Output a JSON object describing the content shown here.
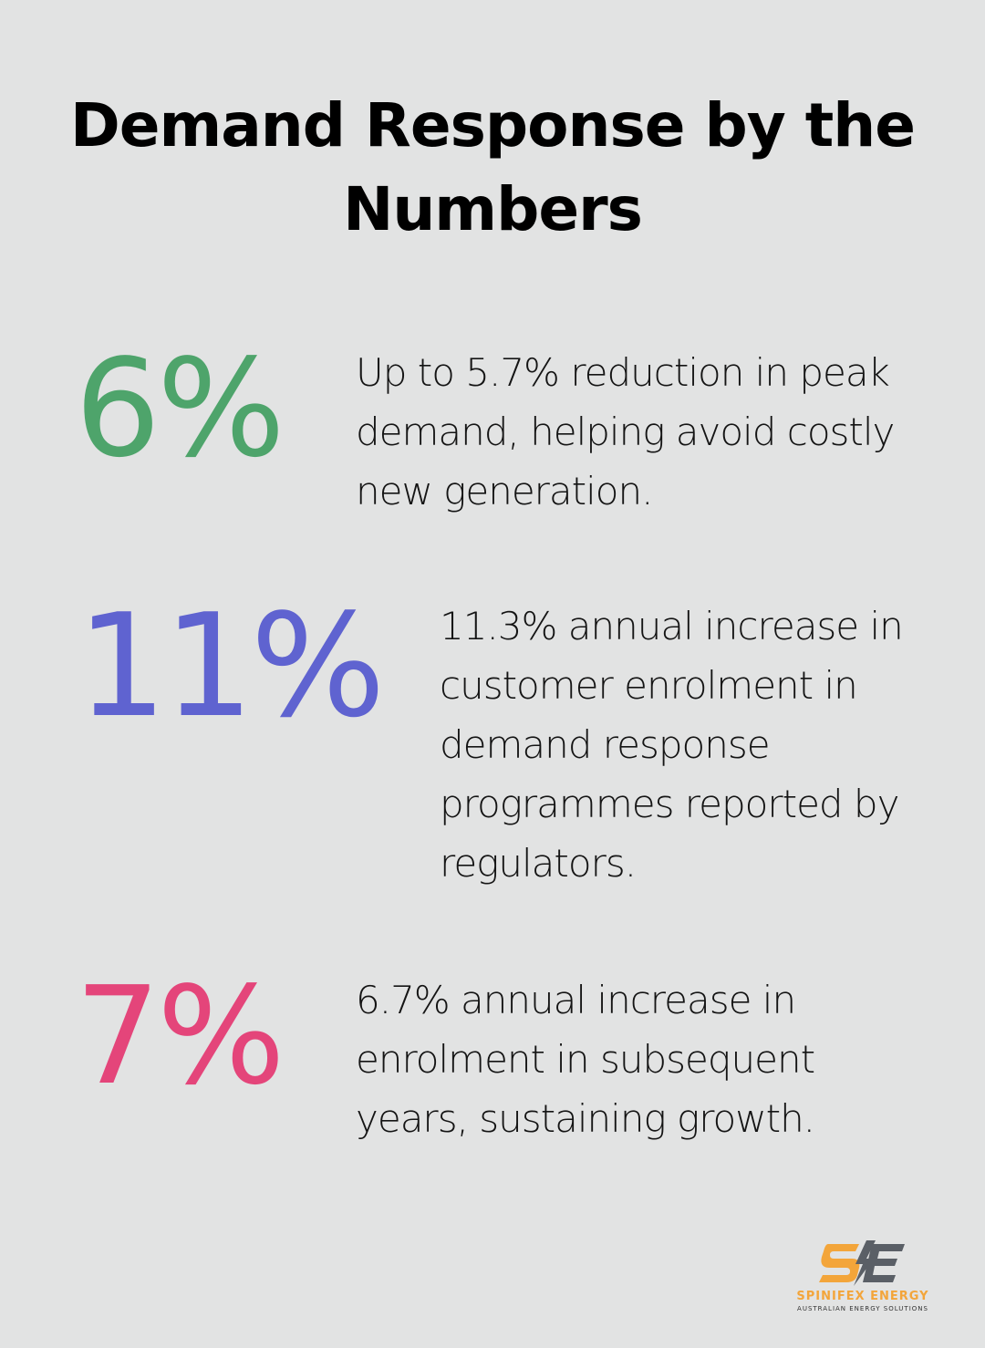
{
  "title": "Demand Response by the Numbers",
  "stats": [
    {
      "value": "6%",
      "description": "Up to 5.7% reduction in peak demand, helping avoid costly new generation.",
      "color": "#4ea46b"
    },
    {
      "value": "11%",
      "description": "11.3% annual increase in customer enrolment in demand response programmes reported by regulators.",
      "color": "#5f63d0"
    },
    {
      "value": "7%",
      "description": "6.7% annual increase in enrolment in subsequent years, sustaining growth.",
      "color": "#e4457a"
    }
  ],
  "logo": {
    "name": "SPINIFEX ENERGY",
    "tagline": "AUSTRALIAN ENERGY SOLUTIONS",
    "icon": "se-monogram-logo",
    "brand_color": "#f3a53a"
  }
}
